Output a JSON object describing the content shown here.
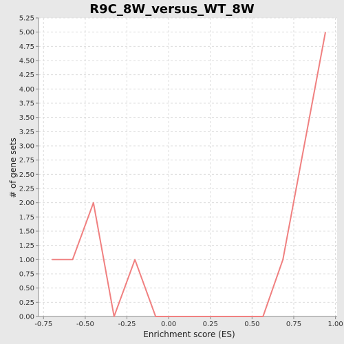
{
  "chart_data": {
    "type": "line",
    "title": "R9C_8W_versus_WT_8W",
    "xlabel": "Enrichment score (ES)",
    "ylabel": "# of gene sets",
    "xlim": [
      -0.78,
      1.01
    ],
    "ylim": [
      0,
      5.25
    ],
    "xticks": [
      -0.75,
      -0.5,
      -0.25,
      0.0,
      0.25,
      0.5,
      0.75,
      1.0
    ],
    "xtick_labels": [
      "-0.75",
      "-0.50",
      "-0.25",
      "0.00",
      "0.25",
      "0.50",
      "0.75",
      "1.00"
    ],
    "yticks": [
      0,
      0.25,
      0.5,
      0.75,
      1.0,
      1.25,
      1.5,
      1.75,
      2.0,
      2.25,
      2.5,
      2.75,
      3.0,
      3.25,
      3.5,
      3.75,
      4.0,
      4.25,
      4.5,
      4.75,
      5.0,
      5.25
    ],
    "ytick_labels": [
      "0.00",
      "0.25",
      "0.50",
      "0.75",
      "1.00",
      "1.25",
      "1.50",
      "1.75",
      "2.00",
      "2.25",
      "2.50",
      "2.75",
      "3.00",
      "3.25",
      "3.50",
      "3.75",
      "4.00",
      "4.25",
      "4.50",
      "4.75",
      "5.00",
      "5.25"
    ],
    "grid": true,
    "series": [
      {
        "color": "#f08080",
        "x": [
          -0.7,
          -0.576,
          -0.451,
          -0.327,
          -0.202,
          -0.078,
          0.047,
          0.171,
          0.296,
          0.42,
          0.566,
          0.685,
          0.94
        ],
        "y": [
          1,
          1,
          2,
          0,
          1,
          0,
          0,
          0,
          0,
          0,
          0,
          1,
          5
        ]
      }
    ]
  },
  "colors": {
    "background": "#e8e8e8",
    "plot_area": "#ffffff",
    "series": "#f08080"
  }
}
